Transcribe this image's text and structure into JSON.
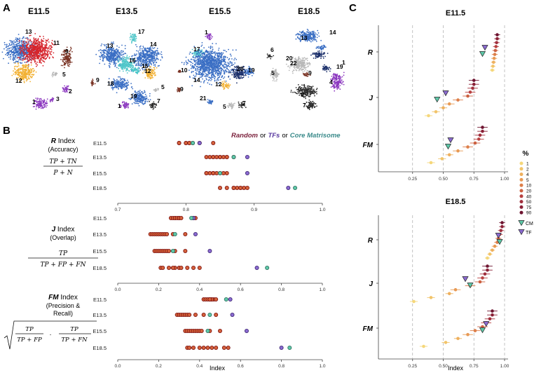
{
  "panel_labels": {
    "a": "A",
    "b": "B",
    "c": "C"
  },
  "colors": {
    "random": "#7a1f3a",
    "tfs": "#5a3aa0",
    "cm": "#3a8a8a",
    "random_fill": "#d4613a",
    "random_stroke": "#7a1010",
    "tf_fill": "#8a6ad0",
    "cm_fill": "#5ec8a8"
  },
  "panel_a": {
    "stages": [
      {
        "name": "E11.5",
        "clusters": [
          "13",
          "11",
          "9",
          "5",
          "12",
          "2",
          "9",
          "1",
          "3"
        ]
      },
      {
        "name": "E13.5",
        "clusters": [
          "17",
          "13",
          "14",
          "16",
          "15",
          "12",
          "10",
          "18",
          "5",
          "19",
          "9",
          "1",
          "7"
        ]
      },
      {
        "name": "E15.5",
        "clusters": [
          "1",
          "17",
          "20",
          "19",
          "14",
          "12",
          "21",
          "5",
          "7"
        ]
      },
      {
        "name": "E18.5",
        "clusters": [
          "13",
          "14",
          "6",
          "20",
          "22",
          "19",
          "5",
          "9",
          "4",
          "1",
          "8",
          "7"
        ]
      }
    ]
  },
  "panel_b": {
    "legend": {
      "random": "Random",
      "or1": "or",
      "tfs": "TFs",
      "or2": "or",
      "cm": "Core Matrisome"
    },
    "xlabel": "Index",
    "stages": [
      "E11.5",
      "E13.5",
      "E15.5",
      "E18.5"
    ],
    "metrics": [
      {
        "name": "R",
        "suffix": " Index",
        "sub": [
          "(Accuracy)"
        ],
        "formula_num": "TP + TN",
        "formula_den": "P + N",
        "ticks": [
          "0.7",
          "0.8",
          "0.9",
          "1.0"
        ]
      },
      {
        "name": "J",
        "suffix": " Index",
        "sub": [
          "(Overlap)"
        ],
        "formula_num": "TP",
        "formula_den": "TP + FP + FN",
        "ticks": [
          "0.0",
          "0.2",
          "0.4",
          "0.6",
          "0.8",
          "1.0"
        ]
      },
      {
        "name": "FM",
        "suffix": " Index",
        "sub": [
          "(Precision &",
          "Recall)"
        ],
        "formula_num": "TP",
        "formula_den": "TP + FP",
        "formula_num2": "TP",
        "formula_den2": "TP + FN",
        "formula_dot": "·",
        "ticks": [
          "0.0",
          "0.2",
          "0.4",
          "0.6",
          "0.8",
          "1.0"
        ]
      }
    ]
  },
  "chart_data": [
    {
      "type": "scatter",
      "title": "R Index (Accuracy)",
      "xlabel": "",
      "xlim": [
        0.7,
        1.0
      ],
      "categories": [
        "E11.5",
        "E13.5",
        "E15.5",
        "E18.5"
      ],
      "series": [
        {
          "name": "Random",
          "values": [
            [
              0.79,
              0.8,
              0.8,
              0.805,
              0.805,
              0.81,
              0.79,
              0.82,
              0.84
            ],
            [
              0.83,
              0.835,
              0.84,
              0.84,
              0.845,
              0.85,
              0.855,
              0.86,
              0.87,
              0.86,
              0.85
            ],
            [
              0.83,
              0.835,
              0.84,
              0.84,
              0.845,
              0.84,
              0.85,
              0.86,
              0.855,
              0.83
            ],
            [
              0.85,
              0.86,
              0.87,
              0.875,
              0.88,
              0.885,
              0.88,
              0.89,
              0.87
            ]
          ]
        },
        {
          "name": "TFs",
          "values": [
            0.82,
            0.89,
            0.89,
            0.95
          ]
        },
        {
          "name": "Core Matrisome",
          "values": [
            0.81,
            0.87,
            0.85,
            0.96
          ]
        }
      ]
    },
    {
      "type": "scatter",
      "title": "J Index (Overlap)",
      "xlabel": "",
      "xlim": [
        0.0,
        1.0
      ],
      "categories": [
        "E11.5",
        "E13.5",
        "E15.5",
        "E18.5"
      ],
      "series": [
        {
          "name": "Random",
          "values": [
            [
              0.26,
              0.27,
              0.28,
              0.28,
              0.29,
              0.3,
              0.3,
              0.31,
              0.38,
              0.37
            ],
            [
              0.16,
              0.17,
              0.18,
              0.19,
              0.2,
              0.21,
              0.22,
              0.23,
              0.24,
              0.27,
              0.33
            ],
            [
              0.18,
              0.19,
              0.2,
              0.21,
              0.22,
              0.23,
              0.24,
              0.25,
              0.28,
              0.33
            ],
            [
              0.21,
              0.22,
              0.25,
              0.28,
              0.3,
              0.31,
              0.34,
              0.37,
              0.4,
              0.27
            ]
          ]
        },
        {
          "name": "TFs",
          "values": [
            0.37,
            0.38,
            0.45,
            0.68
          ]
        },
        {
          "name": "Core Matrisome",
          "values": [
            0.36,
            0.28,
            0.27,
            0.73
          ]
        }
      ]
    },
    {
      "type": "scatter",
      "title": "FM Index (Precision & Recall)",
      "xlabel": "Index",
      "xlim": [
        0.0,
        1.0
      ],
      "categories": [
        "E11.5",
        "E13.5",
        "E15.5",
        "E18.5"
      ],
      "series": [
        {
          "name": "Random",
          "values": [
            [
              0.42,
              0.43,
              0.44,
              0.45,
              0.45,
              0.46,
              0.47,
              0.48,
              0.46,
              0.45
            ],
            [
              0.29,
              0.3,
              0.31,
              0.32,
              0.33,
              0.34,
              0.35,
              0.38,
              0.42,
              0.48
            ],
            [
              0.33,
              0.34,
              0.35,
              0.36,
              0.37,
              0.38,
              0.39,
              0.4,
              0.41,
              0.45,
              0.5
            ],
            [
              0.34,
              0.35,
              0.37,
              0.4,
              0.42,
              0.44,
              0.46,
              0.48,
              0.52,
              0.54
            ]
          ]
        },
        {
          "name": "TFs",
          "values": [
            0.55,
            0.56,
            0.63,
            0.8
          ]
        },
        {
          "name": "Core Matrisome",
          "values": [
            0.53,
            0.45,
            0.44,
            0.84
          ]
        }
      ]
    },
    {
      "type": "scatter",
      "title": "E11.5",
      "xlabel": "",
      "xlim": [
        0.0,
        1.0
      ],
      "categories": [
        "R",
        "J",
        "FM"
      ],
      "percent_levels": [
        "1",
        "2",
        "4",
        "5",
        "10",
        "20",
        "40",
        "50",
        "75",
        "90"
      ],
      "series": [
        {
          "name": "Random (%)",
          "values": [
            [
              0.9,
              0.905,
              0.91,
              0.915,
              0.92,
              0.925,
              0.93,
              0.935,
              0.94,
              0.94
            ],
            [
              0.38,
              0.44,
              0.5,
              0.55,
              0.62,
              0.7,
              0.72,
              0.74,
              0.75,
              0.75
            ],
            [
              0.4,
              0.49,
              0.55,
              0.62,
              0.7,
              0.76,
              0.79,
              0.8,
              0.82,
              0.82
            ]
          ]
        },
        {
          "name": "CM",
          "values": [
            0.82,
            0.45,
            0.54
          ]
        },
        {
          "name": "TF",
          "values": [
            0.84,
            0.52,
            0.56
          ]
        }
      ]
    },
    {
      "type": "scatter",
      "title": "E18.5",
      "xlabel": "Index",
      "xlim": [
        0.0,
        1.0
      ],
      "categories": [
        "R",
        "J",
        "FM"
      ],
      "percent_levels": [
        "1",
        "2",
        "4",
        "5",
        "10",
        "20",
        "40",
        "50",
        "75",
        "90"
      ],
      "series": [
        {
          "name": "Random (%)",
          "values": [
            [
              0.86,
              0.88,
              0.9,
              0.92,
              0.94,
              0.95,
              0.96,
              0.97,
              0.98,
              0.98
            ],
            [
              0.26,
              0.4,
              0.55,
              0.6,
              0.72,
              0.8,
              0.82,
              0.84,
              0.86,
              0.86
            ],
            [
              0.34,
              0.52,
              0.62,
              0.7,
              0.76,
              0.82,
              0.85,
              0.88,
              0.9,
              0.9
            ]
          ]
        },
        {
          "name": "CM",
          "values": [
            0.96,
            0.72,
            0.82
          ]
        },
        {
          "name": "TF",
          "values": [
            0.95,
            0.68,
            0.85
          ]
        }
      ]
    }
  ],
  "panel_c": {
    "xticks": [
      "0.25",
      "0.50",
      "0.75",
      "1.00"
    ],
    "xlabel": "Index",
    "legend_title": "%",
    "legend_levels": [
      "1",
      "2",
      "4",
      "5",
      "10",
      "20",
      "40",
      "50",
      "75",
      "90"
    ],
    "legend_cm": "CM",
    "legend_tf": "TF"
  }
}
